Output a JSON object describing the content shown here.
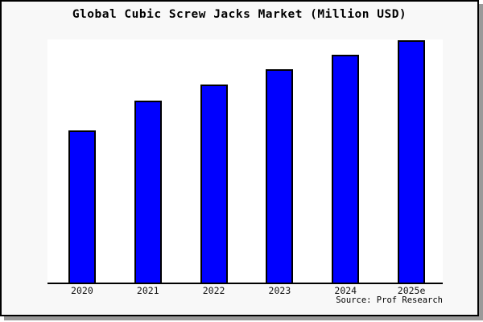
{
  "figure": {
    "title": "Global Cubic Screw Jacks Market (Million USD)",
    "source_label": "Source: Prof Research"
  },
  "colors": {
    "bar_fill": "#0000ff",
    "bar_border": "#000000",
    "figure_background": "#f8f8f8",
    "plot_background": "#ffffff",
    "frame_border": "#000000",
    "frame_shadow": "#999999"
  },
  "chart_data": {
    "type": "bar",
    "title": "Global Cubic Screw Jacks Market (Million USD)",
    "categories": [
      "2020",
      "2021",
      "2022",
      "2023",
      "2024",
      "2025e"
    ],
    "values": [
      62.8,
      75.2,
      81.6,
      87.9,
      93.9,
      100
    ],
    "values_note": "No y-axis labels in image; values are relative bar heights (2025e = 100)",
    "xlabel": "",
    "ylabel": "",
    "ylim": [
      0,
      100
    ],
    "grid": false,
    "legend": null,
    "y_axis_visible": false,
    "x_axis_visible": true
  }
}
